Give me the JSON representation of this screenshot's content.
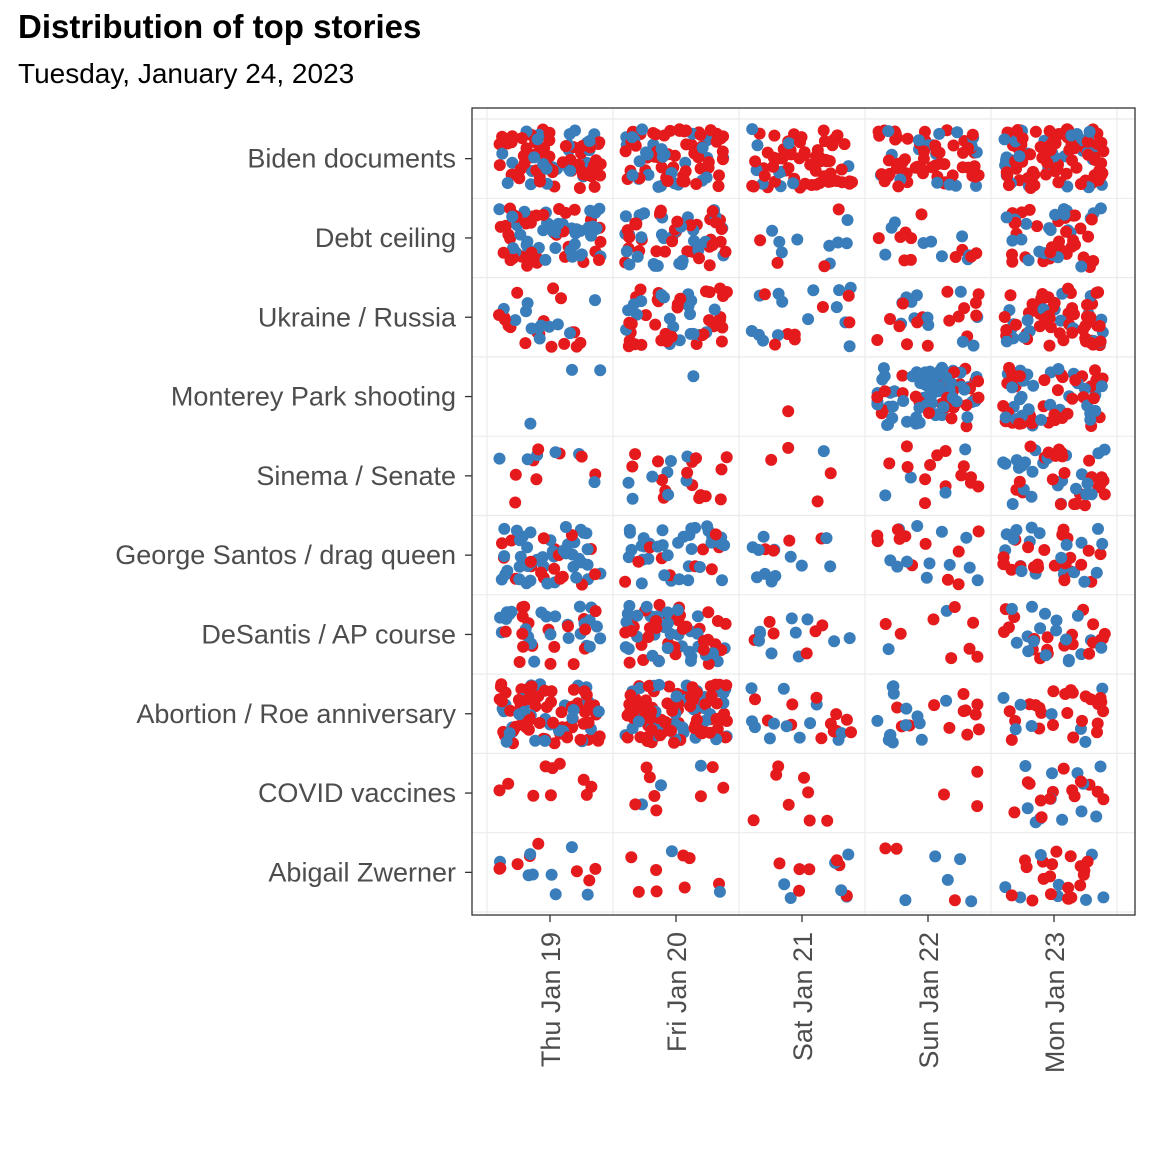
{
  "chart_data": {
    "type": "scatter",
    "title": "Distribution of top stories",
    "subtitle": "Tuesday, January 24, 2023",
    "categories_y": [
      "Biden documents",
      "Debt ceiling",
      "Ukraine / Russia",
      "Monterey Park shooting",
      "Sinema / Senate",
      "George Santos / drag queen",
      "DeSantis / AP course",
      "Abortion / Roe anniversary",
      "COVID vaccines",
      "Abigail Zwerner"
    ],
    "categories_x": [
      "Thu Jan 19",
      "Fri Jan 20",
      "Sat Jan 21",
      "Sun Jan 22",
      "Mon Jan 23"
    ],
    "jitter": true,
    "grid": true,
    "legend": "none",
    "colors": {
      "blue": "#3a7dbb",
      "red": "#e41a1c"
    },
    "counts": {
      "Biden documents": [
        [
          30,
          60
        ],
        [
          28,
          54
        ],
        [
          10,
          60
        ],
        [
          18,
          58
        ],
        [
          35,
          90
        ]
      ],
      "Debt ceiling": [
        [
          45,
          40
        ],
        [
          32,
          34
        ],
        [
          9,
          4
        ],
        [
          9,
          11
        ],
        [
          22,
          32
        ]
      ],
      "Ukraine / Russia": [
        [
          12,
          18
        ],
        [
          20,
          36
        ],
        [
          14,
          8
        ],
        [
          12,
          16
        ],
        [
          20,
          52
        ]
      ],
      "Monterey Park shooting": [
        [
          3,
          0
        ],
        [
          1,
          0
        ],
        [
          0,
          1
        ],
        [
          62,
          30
        ],
        [
          32,
          38
        ]
      ],
      "Sinema / Senate": [
        [
          6,
          8
        ],
        [
          8,
          16
        ],
        [
          1,
          4
        ],
        [
          4,
          14
        ],
        [
          24,
          24
        ]
      ],
      "George Santos / drag queen": [
        [
          42,
          18
        ],
        [
          35,
          10
        ],
        [
          12,
          4
        ],
        [
          12,
          12
        ],
        [
          20,
          24
        ]
      ],
      "DeSantis / AP course": [
        [
          25,
          18
        ],
        [
          34,
          34
        ],
        [
          10,
          6
        ],
        [
          2,
          8
        ],
        [
          18,
          20
        ]
      ],
      "Abortion / Roe anniversary": [
        [
          35,
          62
        ],
        [
          40,
          86
        ],
        [
          12,
          12
        ],
        [
          14,
          12
        ],
        [
          8,
          24
        ]
      ],
      "COVID vaccines": [
        [
          0,
          10
        ],
        [
          3,
          8
        ],
        [
          0,
          8
        ],
        [
          0,
          3
        ],
        [
          12,
          14
        ]
      ],
      "Abigail Zwerner": [
        [
          8,
          8
        ],
        [
          2,
          8
        ],
        [
          6,
          7
        ],
        [
          5,
          3
        ],
        [
          8,
          20
        ]
      ]
    }
  }
}
